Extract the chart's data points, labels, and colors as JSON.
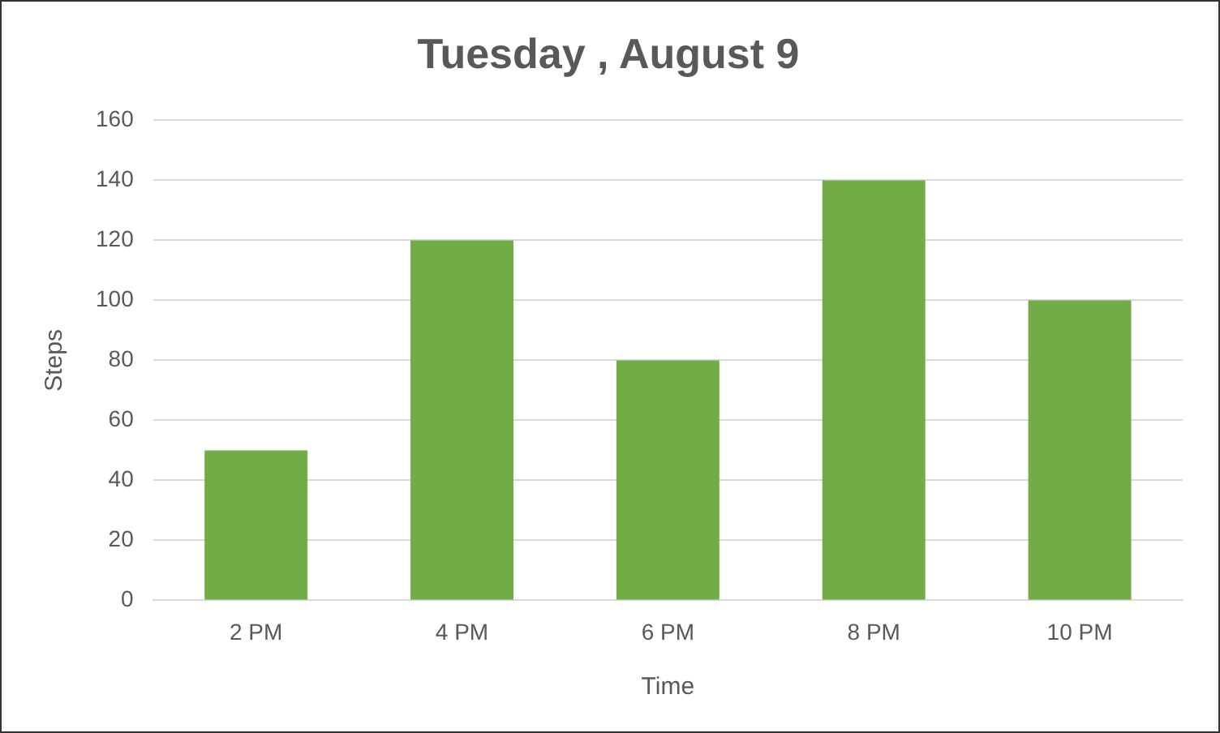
{
  "chart_data": {
    "type": "bar",
    "title": "Tuesday , August 9",
    "xlabel": "Time",
    "ylabel": "Steps",
    "categories": [
      "2 PM",
      "4 PM",
      "6 PM",
      "8 PM",
      "10 PM"
    ],
    "values": [
      50,
      120,
      80,
      140,
      100
    ],
    "color": "#70ad47",
    "ylim": [
      0,
      160
    ],
    "yticks": [
      0,
      20,
      40,
      60,
      80,
      100,
      120,
      140,
      160
    ],
    "grid": "y",
    "legend": false
  }
}
